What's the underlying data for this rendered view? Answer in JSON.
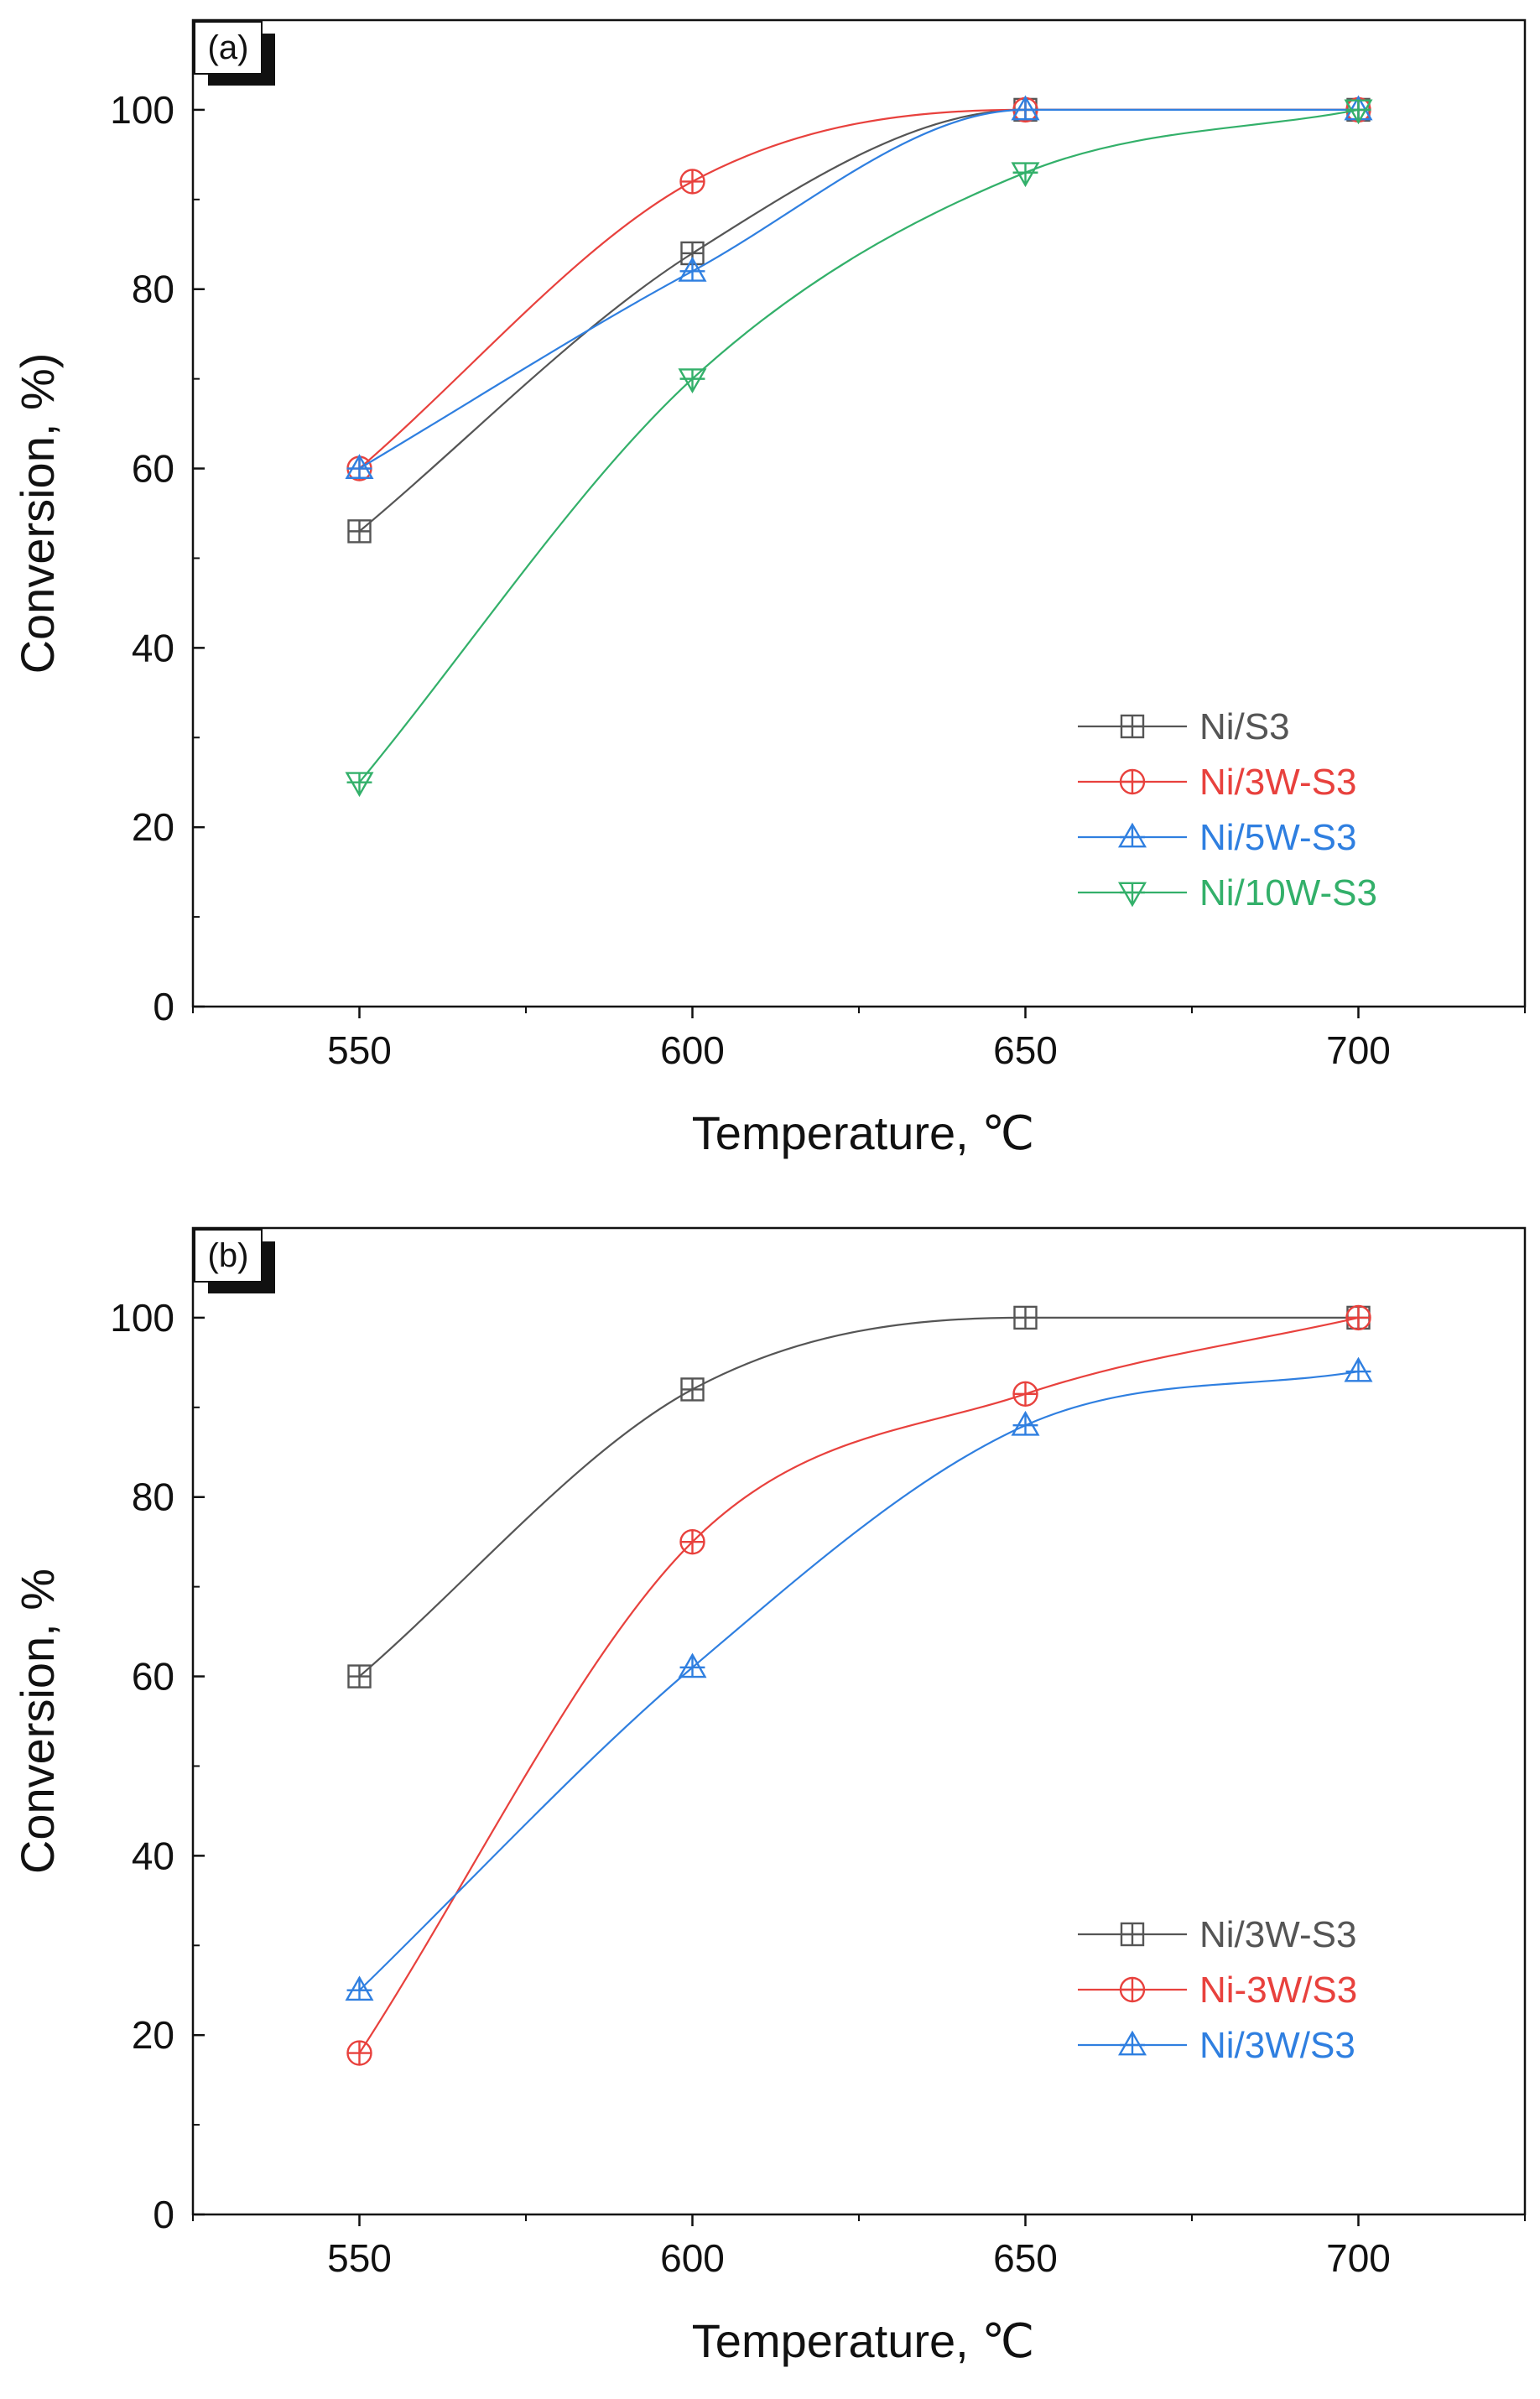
{
  "chart_data": [
    {
      "type": "line",
      "panel_label": "(a)",
      "xlabel": "Temperature, ℃",
      "ylabel": "Conversion, %)",
      "x": [
        550,
        600,
        650,
        700
      ],
      "xlim": [
        525,
        725
      ],
      "ylim": [
        0,
        110
      ],
      "x_ticks": [
        "550",
        "600",
        "650",
        "700"
      ],
      "y_ticks": [
        "0",
        "20",
        "40",
        "60",
        "80",
        "100"
      ],
      "legend_position": "lower-right",
      "series": [
        {
          "name": "Ni/S3",
          "marker": "square",
          "color": "#555555",
          "values": [
            53,
            84,
            100,
            100
          ]
        },
        {
          "name": "Ni/3W-S3",
          "marker": "circle",
          "color": "#e8413d",
          "values": [
            60,
            92,
            100,
            100
          ]
        },
        {
          "name": "Ni/5W-S3",
          "marker": "triangle-up",
          "color": "#2f7fe0",
          "values": [
            60,
            82,
            100,
            100
          ]
        },
        {
          "name": "Ni/10W-S3",
          "marker": "triangle-down",
          "color": "#33b06a",
          "values": [
            25,
            70,
            93,
            100
          ]
        }
      ]
    },
    {
      "type": "line",
      "panel_label": "(b)",
      "xlabel": "Temperature, ℃",
      "ylabel": "Conversion, %",
      "x": [
        550,
        600,
        650,
        700
      ],
      "xlim": [
        525,
        725
      ],
      "ylim": [
        0,
        110
      ],
      "x_ticks": [
        "550",
        "600",
        "650",
        "700"
      ],
      "y_ticks": [
        "0",
        "20",
        "40",
        "60",
        "80",
        "100"
      ],
      "legend_position": "lower-right",
      "series": [
        {
          "name": "Ni/3W-S3",
          "marker": "square",
          "color": "#555555",
          "values": [
            60,
            92,
            100,
            100
          ]
        },
        {
          "name": "Ni-3W/S3",
          "marker": "circle",
          "color": "#e8413d",
          "values": [
            18,
            75,
            91.5,
            100
          ]
        },
        {
          "name": "Ni/3W/S3",
          "marker": "triangle-up",
          "color": "#2f7fe0",
          "values": [
            25,
            61,
            88,
            94
          ]
        }
      ]
    }
  ]
}
